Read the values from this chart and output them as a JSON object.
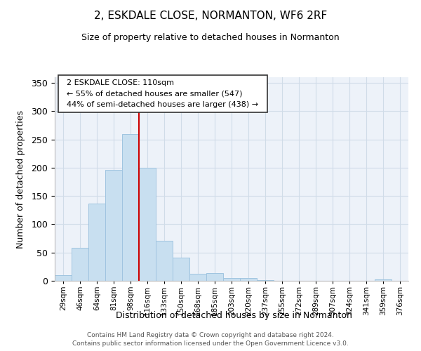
{
  "title": "2, ESKDALE CLOSE, NORMANTON, WF6 2RF",
  "subtitle": "Size of property relative to detached houses in Normanton",
  "xlabel": "Distribution of detached houses by size in Normanton",
  "ylabel": "Number of detached properties",
  "bar_color": "#c8dff0",
  "bar_edge_color": "#a0c4e0",
  "categories": [
    "29sqm",
    "46sqm",
    "64sqm",
    "81sqm",
    "98sqm",
    "116sqm",
    "133sqm",
    "150sqm",
    "168sqm",
    "185sqm",
    "203sqm",
    "220sqm",
    "237sqm",
    "255sqm",
    "272sqm",
    "289sqm",
    "307sqm",
    "324sqm",
    "341sqm",
    "359sqm",
    "376sqm"
  ],
  "values": [
    10,
    58,
    136,
    196,
    260,
    200,
    71,
    41,
    13,
    14,
    5,
    5,
    1,
    0,
    0,
    0,
    0,
    0,
    0,
    2,
    0
  ],
  "vline_x": 5,
  "vline_color": "#cc0000",
  "annotation_title": "2 ESKDALE CLOSE: 110sqm",
  "annotation_line1": "← 55% of detached houses are smaller (547)",
  "annotation_line2": "44% of semi-detached houses are larger (438) →",
  "ylim": [
    0,
    360
  ],
  "yticks": [
    0,
    50,
    100,
    150,
    200,
    250,
    300,
    350
  ],
  "footer_line1": "Contains HM Land Registry data © Crown copyright and database right 2024.",
  "footer_line2": "Contains public sector information licensed under the Open Government Licence v3.0.",
  "bg_color": "#edf2f9",
  "grid_color": "#d0dce8"
}
